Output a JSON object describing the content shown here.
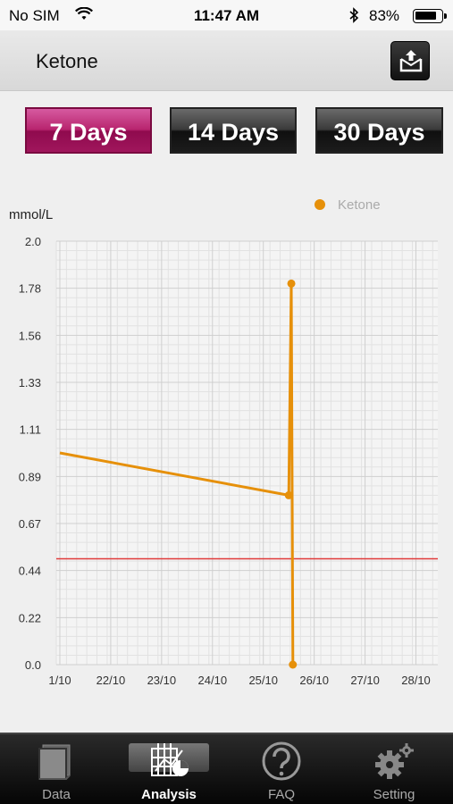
{
  "status": {
    "carrier": "No SIM",
    "time": "11:47 AM",
    "battery": "83%",
    "battery_level": 0.83
  },
  "header": {
    "title": "Ketone",
    "export_icon": "export-icon"
  },
  "range": {
    "buttons": [
      "7 Days",
      "14 Days",
      "30 Days"
    ],
    "selected": "7 Days",
    "accent_color": "#b8246e"
  },
  "chart_data": {
    "type": "line",
    "ylabel": "mmol/L",
    "legend": [
      "Ketone"
    ],
    "legend_position": "top-right",
    "grid": true,
    "ylim": [
      0.0,
      2.0
    ],
    "y_ticks": [
      "2.0",
      "1.78",
      "1.56",
      "1.33",
      "1.11",
      "0.89",
      "0.67",
      "0.44",
      "0.22",
      "0.0"
    ],
    "x_ticks": [
      "1/10",
      "22/10",
      "23/10",
      "24/10",
      "25/10",
      "26/10",
      "27/10",
      "28/10"
    ],
    "series": [
      {
        "name": "Ketone",
        "color": "#e6900a",
        "points": [
          {
            "x": 0,
            "y": 1.0
          },
          {
            "x": 4.5,
            "y": 0.8
          },
          {
            "x": 4.55,
            "y": 1.8
          },
          {
            "x": 4.58,
            "y": 0.0
          }
        ]
      }
    ],
    "threshold": {
      "y": 0.5,
      "color": "#e03a3a"
    }
  },
  "tabs": [
    {
      "label": "Data",
      "icon": "notebook-icon"
    },
    {
      "label": "Analysis",
      "icon": "analysis-chart-icon"
    },
    {
      "label": "FAQ",
      "icon": "question-icon"
    },
    {
      "label": "Setting",
      "icon": "gear-icon"
    }
  ],
  "active_tab": "Analysis"
}
